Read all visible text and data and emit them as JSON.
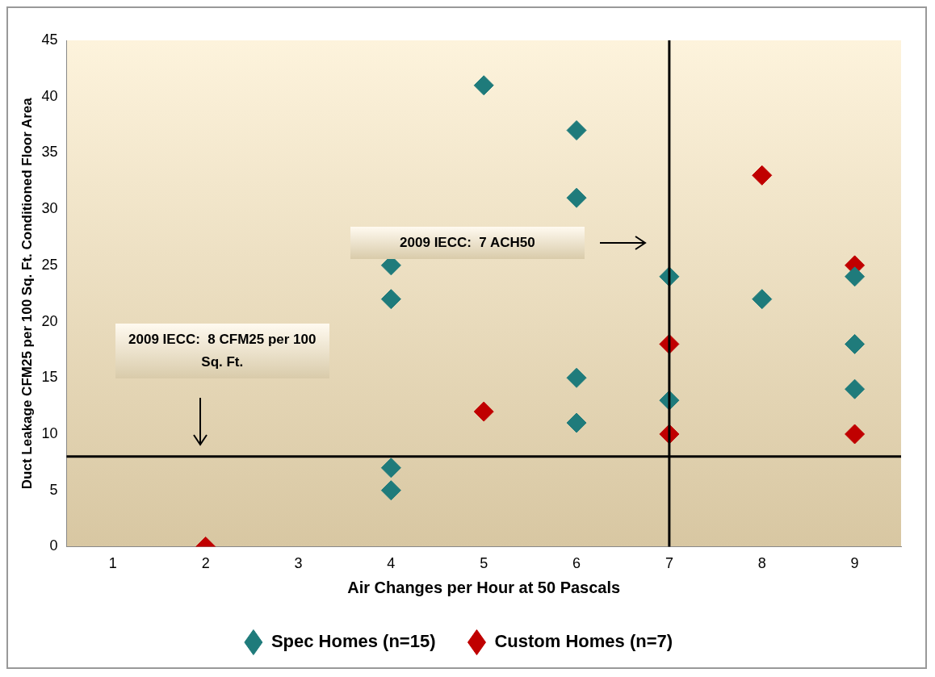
{
  "chart_data": {
    "type": "scatter",
    "xlabel": "Air Changes per Hour at 50 Pascals",
    "ylabel": "Duct Leakage CFM25 per 100 Sq. Ft. Conditioned Floor Area",
    "xlim": [
      0.5,
      9.5
    ],
    "xticks": [
      1,
      2,
      3,
      4,
      5,
      6,
      7,
      8,
      9
    ],
    "ylim": [
      0,
      45
    ],
    "yticks": [
      0,
      5,
      10,
      15,
      20,
      25,
      30,
      35,
      40,
      45
    ],
    "series": [
      {
        "name": "Spec Homes (n=15)",
        "color": "#1f7b7b",
        "x": [
          4,
          4,
          4,
          4,
          5,
          6,
          6,
          6,
          6,
          7,
          7,
          8,
          9,
          9,
          9
        ],
        "values": [
          25,
          22,
          7,
          5,
          41,
          37,
          31,
          15,
          11,
          24,
          13,
          22,
          24,
          18,
          14
        ]
      },
      {
        "name": "Custom Homes (n=7)",
        "color": "#c00000",
        "x": [
          2,
          5,
          7,
          7,
          8,
          9,
          9
        ],
        "values": [
          0,
          12,
          18,
          10,
          33,
          25,
          10
        ]
      }
    ],
    "ref_lines": [
      {
        "axis": "x",
        "value": 7,
        "color": "#000000"
      },
      {
        "axis": "y",
        "value": 8,
        "color": "#000000"
      }
    ],
    "annotations": [
      "2009 IECC:  7 ACH50",
      "2009 IECC:  8 CFM25 per 100 Sq. Ft."
    ],
    "marker": "diamond",
    "grid": false,
    "legend": "bottom"
  }
}
